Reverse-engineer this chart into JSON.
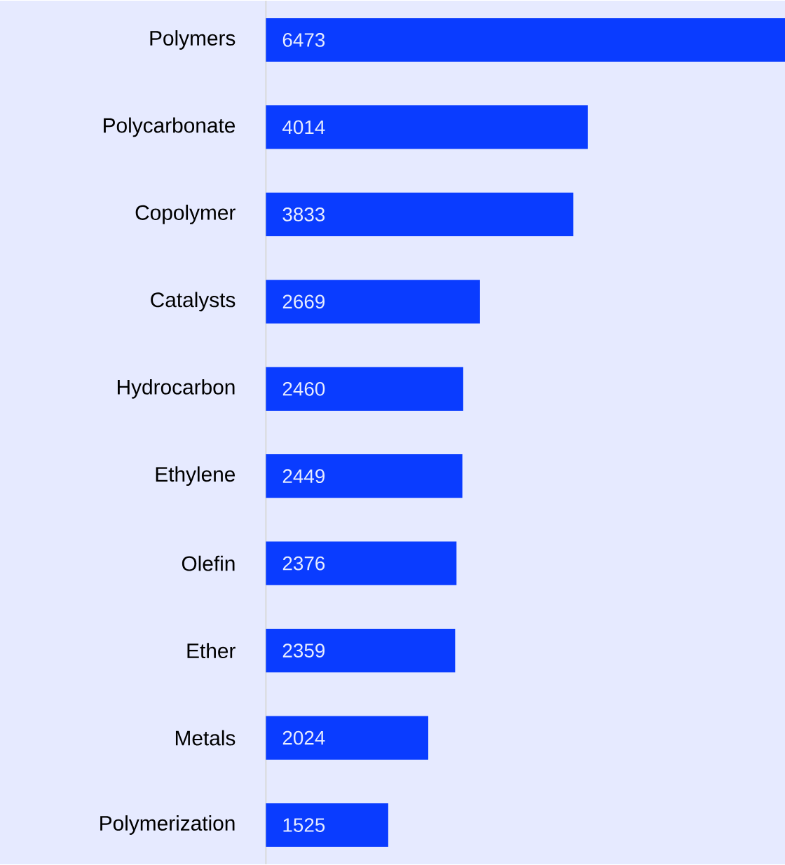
{
  "chart_data": {
    "type": "bar",
    "orientation": "horizontal",
    "data_labels": true,
    "color": "#0a3cff",
    "categories": [
      "Polymers",
      "Polycarbonate",
      "Copolymer",
      "Catalysts",
      "Hydrocarbon",
      "Ethylene",
      "Olefin",
      "Ether",
      "Metals",
      "Polymerization"
    ],
    "values": [
      6473,
      4014,
      3833,
      2669,
      2460,
      2449,
      2376,
      2359,
      2024,
      1525
    ]
  }
}
